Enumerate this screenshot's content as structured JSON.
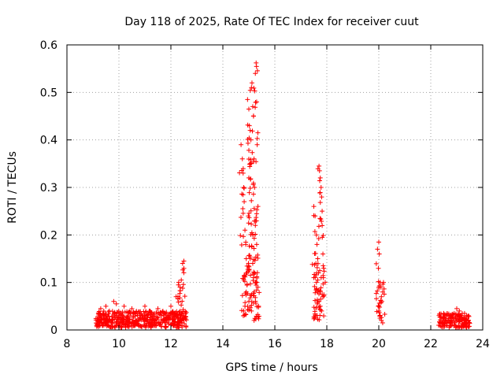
{
  "chart_data": {
    "type": "scatter",
    "title": "Day 118 of 2025, Rate Of TEC Index for receiver cuut",
    "xlabel": "GPS time / hours",
    "ylabel": "ROTI / TECUs",
    "xlim": [
      8,
      24
    ],
    "ylim": [
      0,
      0.6
    ],
    "xticks": [
      8,
      10,
      12,
      14,
      16,
      18,
      20,
      22,
      24
    ],
    "yticks": [
      0,
      0.1,
      0.2,
      0.3,
      0.4,
      0.5,
      0.6
    ],
    "grid": true,
    "marker": "+",
    "color": "#ff0000",
    "series": [
      {
        "name": "ROTI",
        "clusters": [
          {
            "x_range": [
              9.1,
              12.6
            ],
            "baseline": [
              0.005,
              0.04
            ]
          },
          {
            "x_range": [
              22.3,
              23.5
            ],
            "baseline": [
              0.005,
              0.035
            ]
          }
        ],
        "points": [
          {
            "x": 9.3,
            "y": 0.045
          },
          {
            "x": 9.5,
            "y": 0.05
          },
          {
            "x": 9.8,
            "y": 0.06
          },
          {
            "x": 9.9,
            "y": 0.055
          },
          {
            "x": 10.2,
            "y": 0.05
          },
          {
            "x": 10.5,
            "y": 0.045
          },
          {
            "x": 11.0,
            "y": 0.05
          },
          {
            "x": 11.5,
            "y": 0.045
          },
          {
            "x": 12.0,
            "y": 0.05
          },
          {
            "x": 12.2,
            "y": 0.07
          },
          {
            "x": 12.3,
            "y": 0.1
          },
          {
            "x": 12.35,
            "y": 0.09
          },
          {
            "x": 12.45,
            "y": 0.14
          },
          {
            "x": 12.5,
            "y": 0.145
          },
          {
            "x": 12.4,
            "y": 0.105
          },
          {
            "x": 14.7,
            "y": 0.39
          },
          {
            "x": 14.75,
            "y": 0.36
          },
          {
            "x": 14.78,
            "y": 0.33
          },
          {
            "x": 14.8,
            "y": 0.3
          },
          {
            "x": 14.82,
            "y": 0.27
          },
          {
            "x": 14.85,
            "y": 0.21
          },
          {
            "x": 14.88,
            "y": 0.18
          },
          {
            "x": 14.9,
            "y": 0.15
          },
          {
            "x": 14.92,
            "y": 0.12
          },
          {
            "x": 14.95,
            "y": 0.485
          },
          {
            "x": 15.0,
            "y": 0.465
          },
          {
            "x": 15.02,
            "y": 0.43
          },
          {
            "x": 15.05,
            "y": 0.42
          },
          {
            "x": 15.08,
            "y": 0.4
          },
          {
            "x": 15.1,
            "y": 0.51
          },
          {
            "x": 15.12,
            "y": 0.52
          },
          {
            "x": 15.15,
            "y": 0.47
          },
          {
            "x": 15.18,
            "y": 0.45
          },
          {
            "x": 15.2,
            "y": 0.36
          },
          {
            "x": 15.22,
            "y": 0.3
          },
          {
            "x": 15.25,
            "y": 0.54
          },
          {
            "x": 15.28,
            "y": 0.562
          },
          {
            "x": 15.3,
            "y": 0.48
          },
          {
            "x": 15.32,
            "y": 0.39
          },
          {
            "x": 15.35,
            "y": 0.26
          },
          {
            "x": 15.05,
            "y": 0.35
          },
          {
            "x": 15.0,
            "y": 0.32
          },
          {
            "x": 14.98,
            "y": 0.24
          },
          {
            "x": 15.15,
            "y": 0.2
          },
          {
            "x": 15.25,
            "y": 0.22
          },
          {
            "x": 15.3,
            "y": 0.18
          },
          {
            "x": 14.9,
            "y": 0.08
          },
          {
            "x": 15.0,
            "y": 0.06
          },
          {
            "x": 15.1,
            "y": 0.04
          },
          {
            "x": 15.2,
            "y": 0.02
          },
          {
            "x": 15.3,
            "y": 0.1
          },
          {
            "x": 15.35,
            "y": 0.09
          },
          {
            "x": 14.85,
            "y": 0.05
          },
          {
            "x": 14.8,
            "y": 0.04
          },
          {
            "x": 15.05,
            "y": 0.15
          },
          {
            "x": 15.15,
            "y": 0.14
          },
          {
            "x": 15.22,
            "y": 0.12
          },
          {
            "x": 17.5,
            "y": 0.26
          },
          {
            "x": 17.55,
            "y": 0.24
          },
          {
            "x": 17.6,
            "y": 0.2
          },
          {
            "x": 17.62,
            "y": 0.18
          },
          {
            "x": 17.65,
            "y": 0.15
          },
          {
            "x": 17.68,
            "y": 0.12
          },
          {
            "x": 17.7,
            "y": 0.345
          },
          {
            "x": 17.72,
            "y": 0.335
          },
          {
            "x": 17.75,
            "y": 0.32
          },
          {
            "x": 17.78,
            "y": 0.3
          },
          {
            "x": 17.8,
            "y": 0.28
          },
          {
            "x": 17.82,
            "y": 0.25
          },
          {
            "x": 17.85,
            "y": 0.16
          },
          {
            "x": 17.88,
            "y": 0.13
          },
          {
            "x": 17.6,
            "y": 0.1
          },
          {
            "x": 17.65,
            "y": 0.08
          },
          {
            "x": 17.7,
            "y": 0.06
          },
          {
            "x": 17.75,
            "y": 0.05
          },
          {
            "x": 17.8,
            "y": 0.04
          },
          {
            "x": 17.55,
            "y": 0.03
          },
          {
            "x": 17.85,
            "y": 0.07
          },
          {
            "x": 17.5,
            "y": 0.11
          },
          {
            "x": 17.58,
            "y": 0.14
          },
          {
            "x": 19.95,
            "y": 0.17
          },
          {
            "x": 20.0,
            "y": 0.185
          },
          {
            "x": 20.02,
            "y": 0.16
          },
          {
            "x": 20.05,
            "y": 0.1
          },
          {
            "x": 20.08,
            "y": 0.09
          },
          {
            "x": 20.1,
            "y": 0.07
          },
          {
            "x": 20.12,
            "y": 0.06
          },
          {
            "x": 20.15,
            "y": 0.08
          },
          {
            "x": 20.18,
            "y": 0.1
          },
          {
            "x": 19.98,
            "y": 0.05
          },
          {
            "x": 20.0,
            "y": 0.04
          },
          {
            "x": 20.05,
            "y": 0.03
          },
          {
            "x": 20.1,
            "y": 0.02
          },
          {
            "x": 20.15,
            "y": 0.015
          },
          {
            "x": 22.5,
            "y": 0.035
          },
          {
            "x": 22.7,
            "y": 0.03
          },
          {
            "x": 22.9,
            "y": 0.035
          },
          {
            "x": 23.0,
            "y": 0.045
          },
          {
            "x": 23.1,
            "y": 0.04
          },
          {
            "x": 23.3,
            "y": 0.035
          },
          {
            "x": 23.45,
            "y": 0.03
          }
        ]
      }
    ]
  }
}
